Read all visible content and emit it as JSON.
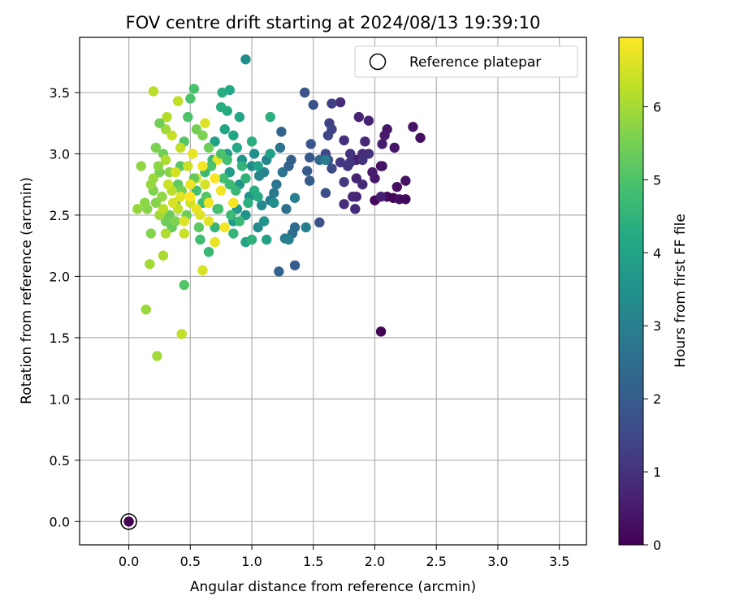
{
  "chart_data": {
    "type": "scatter",
    "title": "FOV centre drift starting at 2024/08/13 19:39:10",
    "xlabel": "Angular distance from reference (arcmin)",
    "ylabel": "Rotation from reference (arcmin)",
    "xlim": [
      -0.4,
      3.72
    ],
    "ylim": [
      -0.19,
      3.95
    ],
    "xticks": [
      "0.0",
      "0.5",
      "1.0",
      "1.5",
      "2.0",
      "2.5",
      "3.0",
      "3.5"
    ],
    "yticks": [
      "0.0",
      "0.5",
      "1.0",
      "1.5",
      "2.0",
      "2.5",
      "3.0",
      "3.5"
    ],
    "grid": true,
    "legend": {
      "label": "Reference platepar",
      "placement": "top-right"
    },
    "reference_point": {
      "x": 0.0,
      "y": 0.0
    },
    "colorbar": {
      "label": "Hours from first FF file",
      "ticks": [
        "0",
        "1",
        "2",
        "3",
        "4",
        "5",
        "6"
      ],
      "range": [
        0,
        6.95
      ],
      "colormap": "viridis"
    },
    "points": [
      {
        "x": 0.0,
        "y": 0.0,
        "h": 0.0
      },
      {
        "x": 2.05,
        "y": 1.55,
        "h": 0.05
      },
      {
        "x": 2.05,
        "y": 2.9,
        "h": 0.1
      },
      {
        "x": 2.0,
        "y": 2.62,
        "h": 0.15
      },
      {
        "x": 2.1,
        "y": 2.65,
        "h": 0.2
      },
      {
        "x": 2.15,
        "y": 2.64,
        "h": 0.1
      },
      {
        "x": 2.2,
        "y": 2.63,
        "h": 0.25
      },
      {
        "x": 2.25,
        "y": 2.63,
        "h": 0.15
      },
      {
        "x": 2.18,
        "y": 2.73,
        "h": 0.3
      },
      {
        "x": 2.25,
        "y": 2.78,
        "h": 0.35
      },
      {
        "x": 2.37,
        "y": 3.13,
        "h": 0.3
      },
      {
        "x": 2.31,
        "y": 3.22,
        "h": 0.4
      },
      {
        "x": 2.16,
        "y": 3.05,
        "h": 0.4
      },
      {
        "x": 2.1,
        "y": 3.2,
        "h": 0.45
      },
      {
        "x": 2.08,
        "y": 3.15,
        "h": 0.5
      },
      {
        "x": 2.06,
        "y": 3.08,
        "h": 0.55
      },
      {
        "x": 2.06,
        "y": 2.9,
        "h": 0.35
      },
      {
        "x": 2.0,
        "y": 2.8,
        "h": 0.45
      },
      {
        "x": 1.98,
        "y": 2.85,
        "h": 0.55
      },
      {
        "x": 2.05,
        "y": 2.65,
        "h": 0.6
      },
      {
        "x": 1.95,
        "y": 3.27,
        "h": 0.65
      },
      {
        "x": 1.87,
        "y": 3.3,
        "h": 0.7
      },
      {
        "x": 1.92,
        "y": 3.1,
        "h": 0.75
      },
      {
        "x": 1.9,
        "y": 3.0,
        "h": 0.8
      },
      {
        "x": 1.85,
        "y": 2.95,
        "h": 0.6
      },
      {
        "x": 1.85,
        "y": 2.8,
        "h": 0.7
      },
      {
        "x": 1.85,
        "y": 2.65,
        "h": 0.75
      },
      {
        "x": 1.82,
        "y": 2.65,
        "h": 0.8
      },
      {
        "x": 1.84,
        "y": 2.55,
        "h": 0.85
      },
      {
        "x": 1.9,
        "y": 2.75,
        "h": 0.85
      },
      {
        "x": 1.75,
        "y": 2.59,
        "h": 0.9
      },
      {
        "x": 1.72,
        "y": 3.42,
        "h": 0.9
      },
      {
        "x": 1.75,
        "y": 3.11,
        "h": 0.95
      },
      {
        "x": 1.8,
        "y": 3.0,
        "h": 1.0
      },
      {
        "x": 1.8,
        "y": 2.93,
        "h": 1.05
      },
      {
        "x": 1.78,
        "y": 2.9,
        "h": 1.1
      },
      {
        "x": 1.72,
        "y": 2.93,
        "h": 1.15
      },
      {
        "x": 1.75,
        "y": 2.77,
        "h": 1.2
      },
      {
        "x": 1.9,
        "y": 2.95,
        "h": 1.0
      },
      {
        "x": 1.95,
        "y": 3.0,
        "h": 0.95
      },
      {
        "x": 1.65,
        "y": 3.41,
        "h": 1.3
      },
      {
        "x": 1.63,
        "y": 3.25,
        "h": 1.35
      },
      {
        "x": 1.65,
        "y": 3.2,
        "h": 1.4
      },
      {
        "x": 1.62,
        "y": 3.15,
        "h": 1.45
      },
      {
        "x": 1.6,
        "y": 3.0,
        "h": 1.5
      },
      {
        "x": 1.62,
        "y": 2.95,
        "h": 1.55
      },
      {
        "x": 1.65,
        "y": 2.88,
        "h": 1.6
      },
      {
        "x": 1.6,
        "y": 2.68,
        "h": 1.65
      },
      {
        "x": 1.55,
        "y": 2.44,
        "h": 1.7
      },
      {
        "x": 1.5,
        "y": 3.4,
        "h": 1.75
      },
      {
        "x": 1.43,
        "y": 3.5,
        "h": 1.8
      },
      {
        "x": 1.48,
        "y": 3.08,
        "h": 1.85
      },
      {
        "x": 1.47,
        "y": 2.97,
        "h": 1.9
      },
      {
        "x": 1.45,
        "y": 2.86,
        "h": 1.95
      },
      {
        "x": 1.47,
        "y": 2.78,
        "h": 2.0
      },
      {
        "x": 1.35,
        "y": 2.09,
        "h": 2.05
      },
      {
        "x": 1.32,
        "y": 2.95,
        "h": 2.1
      },
      {
        "x": 1.3,
        "y": 2.9,
        "h": 2.15
      },
      {
        "x": 1.24,
        "y": 3.18,
        "h": 2.2
      },
      {
        "x": 1.22,
        "y": 2.04,
        "h": 2.25
      },
      {
        "x": 1.55,
        "y": 2.95,
        "h": 2.35
      },
      {
        "x": 1.35,
        "y": 2.4,
        "h": 2.4
      },
      {
        "x": 1.33,
        "y": 2.35,
        "h": 2.5
      },
      {
        "x": 1.28,
        "y": 2.55,
        "h": 2.55
      },
      {
        "x": 1.25,
        "y": 2.85,
        "h": 2.6
      },
      {
        "x": 1.23,
        "y": 3.05,
        "h": 2.65
      },
      {
        "x": 1.2,
        "y": 2.75,
        "h": 2.7
      },
      {
        "x": 1.18,
        "y": 2.68,
        "h": 2.75
      },
      {
        "x": 1.27,
        "y": 2.31,
        "h": 2.8
      },
      {
        "x": 1.15,
        "y": 2.62,
        "h": 2.85
      },
      {
        "x": 1.6,
        "y": 2.95,
        "h": 2.9
      },
      {
        "x": 1.44,
        "y": 2.4,
        "h": 2.95
      },
      {
        "x": 1.35,
        "y": 2.64,
        "h": 3.0
      },
      {
        "x": 1.3,
        "y": 2.3,
        "h": 3.05
      },
      {
        "x": 1.12,
        "y": 2.95,
        "h": 3.1
      },
      {
        "x": 1.1,
        "y": 2.85,
        "h": 3.15
      },
      {
        "x": 1.06,
        "y": 2.82,
        "h": 3.2
      },
      {
        "x": 1.08,
        "y": 2.58,
        "h": 3.25
      },
      {
        "x": 1.05,
        "y": 2.4,
        "h": 3.3
      },
      {
        "x": 1.0,
        "y": 2.9,
        "h": 3.35
      },
      {
        "x": 0.95,
        "y": 3.77,
        "h": 3.4
      },
      {
        "x": 1.02,
        "y": 3.0,
        "h": 3.45
      },
      {
        "x": 0.98,
        "y": 2.65,
        "h": 3.5
      },
      {
        "x": 0.95,
        "y": 2.5,
        "h": 3.55
      },
      {
        "x": 0.92,
        "y": 2.95,
        "h": 3.6
      },
      {
        "x": 0.9,
        "y": 2.75,
        "h": 3.65
      },
      {
        "x": 0.88,
        "y": 2.55,
        "h": 3.7
      },
      {
        "x": 0.85,
        "y": 2.45,
        "h": 3.75
      },
      {
        "x": 0.82,
        "y": 2.85,
        "h": 3.8
      },
      {
        "x": 0.8,
        "y": 3.0,
        "h": 3.85
      },
      {
        "x": 1.15,
        "y": 3.0,
        "h": 3.9
      },
      {
        "x": 1.12,
        "y": 2.3,
        "h": 3.95
      },
      {
        "x": 1.05,
        "y": 2.9,
        "h": 4.0
      },
      {
        "x": 0.95,
        "y": 2.28,
        "h": 4.05
      },
      {
        "x": 0.9,
        "y": 3.3,
        "h": 4.1
      },
      {
        "x": 0.85,
        "y": 3.15,
        "h": 4.15
      },
      {
        "x": 0.82,
        "y": 3.52,
        "h": 4.2
      },
      {
        "x": 0.8,
        "y": 3.35,
        "h": 4.25
      },
      {
        "x": 0.76,
        "y": 3.5,
        "h": 4.3
      },
      {
        "x": 0.75,
        "y": 3.38,
        "h": 4.35
      },
      {
        "x": 1.15,
        "y": 3.3,
        "h": 4.4
      },
      {
        "x": 1.0,
        "y": 2.3,
        "h": 4.45
      },
      {
        "x": 0.72,
        "y": 2.55,
        "h": 4.5
      },
      {
        "x": 0.7,
        "y": 2.4,
        "h": 4.55
      },
      {
        "x": 0.68,
        "y": 2.95,
        "h": 4.6
      },
      {
        "x": 0.65,
        "y": 2.2,
        "h": 4.65
      },
      {
        "x": 0.62,
        "y": 2.85,
        "h": 4.7
      },
      {
        "x": 0.6,
        "y": 2.6,
        "h": 4.75
      },
      {
        "x": 0.58,
        "y": 2.3,
        "h": 4.8
      },
      {
        "x": 0.55,
        "y": 2.7,
        "h": 4.85
      },
      {
        "x": 0.53,
        "y": 3.53,
        "h": 4.9
      },
      {
        "x": 0.5,
        "y": 3.45,
        "h": 4.95
      },
      {
        "x": 0.48,
        "y": 3.3,
        "h": 5.0
      },
      {
        "x": 0.45,
        "y": 1.93,
        "h": 5.05
      },
      {
        "x": 0.45,
        "y": 3.1,
        "h": 5.1
      },
      {
        "x": 0.42,
        "y": 2.9,
        "h": 5.15
      },
      {
        "x": 0.4,
        "y": 2.75,
        "h": 5.2
      },
      {
        "x": 0.38,
        "y": 2.6,
        "h": 5.25
      },
      {
        "x": 0.35,
        "y": 2.4,
        "h": 5.3
      },
      {
        "x": 0.33,
        "y": 2.5,
        "h": 5.35
      },
      {
        "x": 0.3,
        "y": 2.45,
        "h": 5.4
      },
      {
        "x": 0.28,
        "y": 3.0,
        "h": 5.45
      },
      {
        "x": 0.25,
        "y": 2.85,
        "h": 5.5
      },
      {
        "x": 0.22,
        "y": 3.05,
        "h": 5.55
      },
      {
        "x": 0.2,
        "y": 2.7,
        "h": 5.6
      },
      {
        "x": 0.18,
        "y": 2.35,
        "h": 5.65
      },
      {
        "x": 0.15,
        "y": 2.55,
        "h": 5.7
      },
      {
        "x": 0.13,
        "y": 2.6,
        "h": 5.75
      },
      {
        "x": 0.1,
        "y": 2.9,
        "h": 5.8
      },
      {
        "x": 0.07,
        "y": 2.55,
        "h": 5.85
      },
      {
        "x": 0.14,
        "y": 1.73,
        "h": 5.9
      },
      {
        "x": 0.23,
        "y": 1.35,
        "h": 5.95
      },
      {
        "x": 0.17,
        "y": 2.1,
        "h": 6.0
      },
      {
        "x": 0.28,
        "y": 2.17,
        "h": 6.05
      },
      {
        "x": 0.3,
        "y": 2.35,
        "h": 6.1
      },
      {
        "x": 0.31,
        "y": 3.3,
        "h": 6.15
      },
      {
        "x": 0.2,
        "y": 3.51,
        "h": 6.2
      },
      {
        "x": 0.4,
        "y": 3.43,
        "h": 6.25
      },
      {
        "x": 0.43,
        "y": 1.53,
        "h": 6.3
      },
      {
        "x": 0.35,
        "y": 3.15,
        "h": 6.35
      },
      {
        "x": 0.45,
        "y": 2.35,
        "h": 6.4
      },
      {
        "x": 0.5,
        "y": 2.6,
        "h": 6.45
      },
      {
        "x": 0.55,
        "y": 2.8,
        "h": 6.5
      },
      {
        "x": 0.6,
        "y": 2.05,
        "h": 6.55
      },
      {
        "x": 0.62,
        "y": 3.25,
        "h": 6.6
      },
      {
        "x": 0.65,
        "y": 2.45,
        "h": 6.65
      },
      {
        "x": 0.7,
        "y": 2.28,
        "h": 6.7
      },
      {
        "x": 0.72,
        "y": 2.95,
        "h": 6.75
      },
      {
        "x": 0.75,
        "y": 2.7,
        "h": 6.8
      },
      {
        "x": 0.78,
        "y": 2.4,
        "h": 6.85
      },
      {
        "x": 0.85,
        "y": 2.6,
        "h": 6.9
      },
      {
        "x": 0.5,
        "y": 2.65,
        "h": 6.95
      },
      {
        "x": 0.52,
        "y": 3.0,
        "h": 6.7
      },
      {
        "x": 0.58,
        "y": 2.5,
        "h": 6.6
      },
      {
        "x": 0.62,
        "y": 2.75,
        "h": 6.5
      },
      {
        "x": 0.48,
        "y": 2.9,
        "h": 6.4
      },
      {
        "x": 0.4,
        "y": 2.55,
        "h": 6.3
      },
      {
        "x": 0.35,
        "y": 2.7,
        "h": 6.2
      },
      {
        "x": 0.3,
        "y": 2.95,
        "h": 6.1
      },
      {
        "x": 0.25,
        "y": 2.5,
        "h": 6.0
      },
      {
        "x": 0.2,
        "y": 2.8,
        "h": 5.9
      },
      {
        "x": 0.27,
        "y": 2.65,
        "h": 5.8
      },
      {
        "x": 0.33,
        "y": 2.85,
        "h": 5.7
      },
      {
        "x": 0.38,
        "y": 2.45,
        "h": 5.6
      },
      {
        "x": 0.43,
        "y": 2.7,
        "h": 5.5
      },
      {
        "x": 0.47,
        "y": 2.5,
        "h": 5.4
      },
      {
        "x": 0.53,
        "y": 2.8,
        "h": 5.3
      },
      {
        "x": 0.57,
        "y": 2.4,
        "h": 5.2
      },
      {
        "x": 0.63,
        "y": 2.65,
        "h": 5.1
      },
      {
        "x": 0.67,
        "y": 2.9,
        "h": 5.0
      },
      {
        "x": 0.73,
        "y": 2.55,
        "h": 4.9
      },
      {
        "x": 0.77,
        "y": 2.8,
        "h": 4.8
      },
      {
        "x": 0.83,
        "y": 2.5,
        "h": 4.7
      },
      {
        "x": 0.87,
        "y": 2.7,
        "h": 4.6
      },
      {
        "x": 0.92,
        "y": 2.9,
        "h": 4.5
      },
      {
        "x": 0.97,
        "y": 2.6,
        "h": 4.4
      },
      {
        "x": 1.02,
        "y": 2.7,
        "h": 4.3
      },
      {
        "x": 0.88,
        "y": 3.05,
        "h": 4.2
      },
      {
        "x": 0.78,
        "y": 3.2,
        "h": 4.1
      },
      {
        "x": 0.7,
        "y": 3.1,
        "h": 4.0
      },
      {
        "x": 0.6,
        "y": 3.15,
        "h": 5.6
      },
      {
        "x": 0.55,
        "y": 3.2,
        "h": 5.5
      },
      {
        "x": 0.65,
        "y": 3.05,
        "h": 5.4
      },
      {
        "x": 0.42,
        "y": 3.05,
        "h": 6.3
      },
      {
        "x": 0.38,
        "y": 2.85,
        "h": 6.5
      },
      {
        "x": 0.32,
        "y": 2.75,
        "h": 6.4
      },
      {
        "x": 0.28,
        "y": 2.55,
        "h": 6.2
      },
      {
        "x": 0.45,
        "y": 2.45,
        "h": 6.6
      },
      {
        "x": 0.55,
        "y": 2.55,
        "h": 6.7
      },
      {
        "x": 0.65,
        "y": 2.6,
        "h": 6.8
      },
      {
        "x": 0.7,
        "y": 2.8,
        "h": 6.9
      },
      {
        "x": 0.6,
        "y": 2.9,
        "h": 6.85
      },
      {
        "x": 0.5,
        "y": 2.75,
        "h": 6.75
      },
      {
        "x": 0.42,
        "y": 2.65,
        "h": 6.65
      },
      {
        "x": 0.36,
        "y": 2.6,
        "h": 6.55
      },
      {
        "x": 0.24,
        "y": 2.9,
        "h": 5.75
      },
      {
        "x": 0.22,
        "y": 2.6,
        "h": 5.65
      },
      {
        "x": 0.18,
        "y": 2.75,
        "h": 5.85
      },
      {
        "x": 0.3,
        "y": 3.2,
        "h": 5.95
      },
      {
        "x": 0.25,
        "y": 3.25,
        "h": 5.45
      },
      {
        "x": 0.75,
        "y": 3.0,
        "h": 4.95
      },
      {
        "x": 0.8,
        "y": 2.95,
        "h": 4.85
      },
      {
        "x": 0.82,
        "y": 2.75,
        "h": 4.75
      },
      {
        "x": 0.9,
        "y": 2.45,
        "h": 4.65
      },
      {
        "x": 0.85,
        "y": 2.35,
        "h": 4.55
      },
      {
        "x": 0.95,
        "y": 2.8,
        "h": 4.45
      },
      {
        "x": 1.0,
        "y": 3.1,
        "h": 4.35
      },
      {
        "x": 1.05,
        "y": 2.65,
        "h": 4.25
      },
      {
        "x": 1.1,
        "y": 2.45,
        "h": 3.6
      },
      {
        "x": 1.18,
        "y": 2.6,
        "h": 3.4
      }
    ]
  }
}
